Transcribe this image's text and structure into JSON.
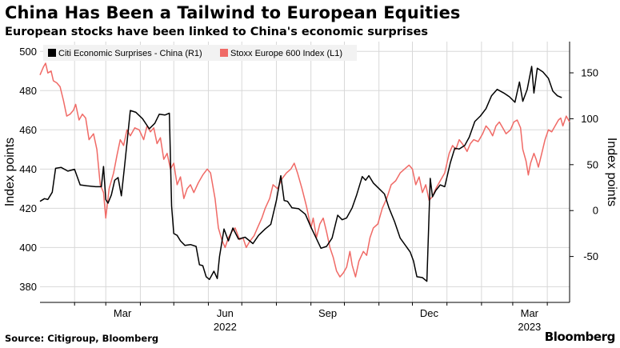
{
  "header": {
    "title": "China Has Been a Tailwind to European Equities",
    "subtitle": "European stocks have been linked to China's economic surprises"
  },
  "footer": {
    "source": "Source: Citigroup, Bloomberg",
    "brand": "Bloomberg"
  },
  "colors": {
    "citi_series": "#000000",
    "stoxx_series": "#f06a66",
    "grid": "#d8d8d8",
    "legend_bg": "#f2f2f2"
  },
  "chart_data": {
    "type": "line",
    "title": "China Has Been a Tailwind to European Equities",
    "subtitle": "European stocks have been linked to China's economic surprises",
    "grid": true,
    "legend_position": "top-left",
    "left_axis": {
      "label": "Index points",
      "ylim": [
        372,
        505
      ],
      "ticks": [
        380,
        400,
        420,
        440,
        460,
        480,
        500
      ]
    },
    "right_axis": {
      "label": "Index points",
      "ylim": [
        -100,
        184
      ],
      "ticks": [
        -50,
        0,
        50,
        100,
        150
      ]
    },
    "x_axis": {
      "range": [
        "2022-01-01",
        "2023-04-21"
      ],
      "month_ticks": [
        {
          "label": "Mar",
          "date": "2022-03-01"
        },
        {
          "label": "Jun",
          "date": "2022-06-01"
        },
        {
          "label": "Sep",
          "date": "2022-09-01"
        },
        {
          "label": "Dec",
          "date": "2022-12-01"
        },
        {
          "label": "Mar",
          "date": "2023-03-01"
        }
      ],
      "year_ticks": [
        {
          "label": "2022",
          "date": "2022-06-01"
        },
        {
          "label": "2023",
          "date": "2023-03-01"
        }
      ]
    },
    "series": [
      {
        "name": "Citi Economic Surprises - China (R1)",
        "axis": "right",
        "points": [
          [
            "2022-01-01",
            10
          ],
          [
            "2022-01-05",
            13
          ],
          [
            "2022-01-08",
            12
          ],
          [
            "2022-01-12",
            20
          ],
          [
            "2022-01-15",
            46
          ],
          [
            "2022-01-20",
            47
          ],
          [
            "2022-01-26",
            43
          ],
          [
            "2022-02-01",
            45
          ],
          [
            "2022-02-06",
            28
          ],
          [
            "2022-02-12",
            27
          ],
          [
            "2022-02-20",
            26
          ],
          [
            "2022-02-25",
            26
          ],
          [
            "2022-02-27",
            48
          ],
          [
            "2022-03-01",
            12
          ],
          [
            "2022-03-03",
            8
          ],
          [
            "2022-03-06",
            17
          ],
          [
            "2022-03-09",
            33
          ],
          [
            "2022-03-12",
            36
          ],
          [
            "2022-03-15",
            16
          ],
          [
            "2022-03-18",
            50
          ],
          [
            "2022-03-23",
            109
          ],
          [
            "2022-03-28",
            107
          ],
          [
            "2022-04-03",
            100
          ],
          [
            "2022-04-09",
            89
          ],
          [
            "2022-04-14",
            95
          ],
          [
            "2022-04-18",
            105
          ],
          [
            "2022-04-23",
            104
          ],
          [
            "2022-04-27",
            106
          ],
          [
            "2022-04-29",
            5
          ],
          [
            "2022-05-01",
            -25
          ],
          [
            "2022-05-04",
            -27
          ],
          [
            "2022-05-07",
            -33
          ],
          [
            "2022-05-11",
            -38
          ],
          [
            "2022-05-16",
            -37
          ],
          [
            "2022-05-21",
            -39
          ],
          [
            "2022-05-24",
            -59
          ],
          [
            "2022-05-27",
            -60
          ],
          [
            "2022-05-30",
            -72
          ],
          [
            "2022-06-02",
            -75
          ],
          [
            "2022-06-06",
            -66
          ],
          [
            "2022-06-09",
            -74
          ],
          [
            "2022-06-11",
            -50
          ],
          [
            "2022-06-15",
            -20
          ],
          [
            "2022-06-19",
            -33
          ],
          [
            "2022-06-23",
            -19
          ],
          [
            "2022-06-28",
            -31
          ],
          [
            "2022-07-04",
            -29
          ],
          [
            "2022-07-11",
            -36
          ],
          [
            "2022-07-16",
            -27
          ],
          [
            "2022-07-22",
            -20
          ],
          [
            "2022-07-27",
            -15
          ],
          [
            "2022-08-01",
            11
          ],
          [
            "2022-08-05",
            38
          ],
          [
            "2022-08-08",
            11
          ],
          [
            "2022-08-11",
            10
          ],
          [
            "2022-08-15",
            3
          ],
          [
            "2022-08-21",
            2
          ],
          [
            "2022-08-27",
            -4
          ],
          [
            "2022-09-01",
            -18
          ],
          [
            "2022-09-05",
            -28
          ],
          [
            "2022-09-10",
            -41
          ],
          [
            "2022-09-15",
            -39
          ],
          [
            "2022-09-20",
            -30
          ],
          [
            "2022-09-25",
            -5
          ],
          [
            "2022-09-29",
            -10
          ],
          [
            "2022-10-03",
            -8
          ],
          [
            "2022-10-08",
            3
          ],
          [
            "2022-10-12",
            17
          ],
          [
            "2022-10-17",
            37
          ],
          [
            "2022-10-20",
            33
          ],
          [
            "2022-10-23",
            38
          ],
          [
            "2022-10-27",
            30
          ],
          [
            "2022-11-01",
            24
          ],
          [
            "2022-11-06",
            18
          ],
          [
            "2022-11-10",
            3
          ],
          [
            "2022-11-15",
            -12
          ],
          [
            "2022-11-20",
            -30
          ],
          [
            "2022-11-26",
            -40
          ],
          [
            "2022-11-29",
            -45
          ],
          [
            "2022-12-02",
            -55
          ],
          [
            "2022-12-05",
            -72
          ],
          [
            "2022-12-10",
            -73
          ],
          [
            "2022-12-14",
            -77
          ],
          [
            "2022-12-17",
            35
          ],
          [
            "2022-12-19",
            15
          ],
          [
            "2022-12-22",
            22
          ],
          [
            "2022-12-26",
            28
          ],
          [
            "2022-12-30",
            26
          ],
          [
            "2023-01-04",
            52
          ],
          [
            "2023-01-08",
            68
          ],
          [
            "2023-01-12",
            67
          ],
          [
            "2023-01-17",
            71
          ],
          [
            "2023-01-21",
            80
          ],
          [
            "2023-01-26",
            97
          ],
          [
            "2023-01-31",
            103
          ],
          [
            "2023-02-05",
            111
          ],
          [
            "2023-02-10",
            125
          ],
          [
            "2023-02-15",
            132
          ],
          [
            "2023-02-21",
            128
          ],
          [
            "2023-02-26",
            124
          ],
          [
            "2023-03-03",
            118
          ],
          [
            "2023-03-07",
            140
          ],
          [
            "2023-03-10",
            119
          ],
          [
            "2023-03-14",
            132
          ],
          [
            "2023-03-18",
            157
          ],
          [
            "2023-03-20",
            128
          ],
          [
            "2023-03-23",
            155
          ],
          [
            "2023-03-28",
            151
          ],
          [
            "2023-04-02",
            144
          ],
          [
            "2023-04-06",
            130
          ],
          [
            "2023-04-10",
            125
          ],
          [
            "2023-04-14",
            123
          ]
        ]
      },
      {
        "name": "Stoxx Europe 600 Index (L1)",
        "axis": "left",
        "points": [
          [
            "2022-01-01",
            488
          ],
          [
            "2022-01-04",
            492
          ],
          [
            "2022-01-06",
            494
          ],
          [
            "2022-01-08",
            489
          ],
          [
            "2022-01-11",
            490
          ],
          [
            "2022-01-13",
            485
          ],
          [
            "2022-01-16",
            484
          ],
          [
            "2022-01-19",
            482
          ],
          [
            "2022-01-22",
            475
          ],
          [
            "2022-01-25",
            467
          ],
          [
            "2022-01-28",
            468
          ],
          [
            "2022-01-31",
            470
          ],
          [
            "2022-02-02",
            473
          ],
          [
            "2022-02-05",
            465
          ],
          [
            "2022-02-08",
            468
          ],
          [
            "2022-02-11",
            466
          ],
          [
            "2022-02-14",
            455
          ],
          [
            "2022-02-18",
            458
          ],
          [
            "2022-02-21",
            450
          ],
          [
            "2022-02-24",
            432
          ],
          [
            "2022-02-27",
            428
          ],
          [
            "2022-03-01",
            415
          ],
          [
            "2022-03-04",
            430
          ],
          [
            "2022-03-08",
            438
          ],
          [
            "2022-03-11",
            447
          ],
          [
            "2022-03-14",
            455
          ],
          [
            "2022-03-17",
            452
          ],
          [
            "2022-03-20",
            460
          ],
          [
            "2022-03-23",
            457
          ],
          [
            "2022-03-27",
            461
          ],
          [
            "2022-03-31",
            460
          ],
          [
            "2022-04-04",
            455
          ],
          [
            "2022-04-07",
            462
          ],
          [
            "2022-04-10",
            459
          ],
          [
            "2022-04-13",
            461
          ],
          [
            "2022-04-16",
            453
          ],
          [
            "2022-04-19",
            456
          ],
          [
            "2022-04-22",
            445
          ],
          [
            "2022-04-25",
            448
          ],
          [
            "2022-04-28",
            440
          ],
          [
            "2022-05-01",
            443
          ],
          [
            "2022-05-04",
            432
          ],
          [
            "2022-05-07",
            436
          ],
          [
            "2022-05-10",
            425
          ],
          [
            "2022-05-13",
            430
          ],
          [
            "2022-05-16",
            432
          ],
          [
            "2022-05-19",
            428
          ],
          [
            "2022-05-23",
            433
          ],
          [
            "2022-05-27",
            437
          ],
          [
            "2022-05-31",
            440
          ],
          [
            "2022-06-03",
            438
          ],
          [
            "2022-06-07",
            425
          ],
          [
            "2022-06-10",
            410
          ],
          [
            "2022-06-13",
            404
          ],
          [
            "2022-06-16",
            400
          ],
          [
            "2022-06-19",
            405
          ],
          [
            "2022-06-22",
            408
          ],
          [
            "2022-06-25",
            410
          ],
          [
            "2022-06-29",
            404
          ],
          [
            "2022-07-02",
            405
          ],
          [
            "2022-07-05",
            400
          ],
          [
            "2022-07-08",
            403
          ],
          [
            "2022-07-12",
            406
          ],
          [
            "2022-07-15",
            410
          ],
          [
            "2022-07-19",
            415
          ],
          [
            "2022-07-22",
            420
          ],
          [
            "2022-07-26",
            425
          ],
          [
            "2022-07-29",
            432
          ],
          [
            "2022-08-02",
            430
          ],
          [
            "2022-08-06",
            435
          ],
          [
            "2022-08-10",
            438
          ],
          [
            "2022-08-14",
            440
          ],
          [
            "2022-08-17",
            443
          ],
          [
            "2022-08-20",
            438
          ],
          [
            "2022-08-24",
            430
          ],
          [
            "2022-08-28",
            421
          ],
          [
            "2022-09-01",
            410
          ],
          [
            "2022-09-03",
            415
          ],
          [
            "2022-09-06",
            405
          ],
          [
            "2022-09-09",
            412
          ],
          [
            "2022-09-12",
            415
          ],
          [
            "2022-09-15",
            408
          ],
          [
            "2022-09-18",
            400
          ],
          [
            "2022-09-21",
            395
          ],
          [
            "2022-09-24",
            388
          ],
          [
            "2022-09-27",
            385
          ],
          [
            "2022-09-30",
            387
          ],
          [
            "2022-10-03",
            390
          ],
          [
            "2022-10-06",
            398
          ],
          [
            "2022-10-08",
            391
          ],
          [
            "2022-10-11",
            385
          ],
          [
            "2022-10-14",
            393
          ],
          [
            "2022-10-18",
            398
          ],
          [
            "2022-10-21",
            396
          ],
          [
            "2022-10-24",
            405
          ],
          [
            "2022-10-27",
            410
          ],
          [
            "2022-10-31",
            412
          ],
          [
            "2022-11-04",
            420
          ],
          [
            "2022-11-08",
            425
          ],
          [
            "2022-11-12",
            432
          ],
          [
            "2022-11-16",
            434
          ],
          [
            "2022-11-20",
            438
          ],
          [
            "2022-11-24",
            440
          ],
          [
            "2022-11-28",
            442
          ],
          [
            "2022-12-01",
            440
          ],
          [
            "2022-12-04",
            432
          ],
          [
            "2022-12-07",
            436
          ],
          [
            "2022-12-10",
            428
          ],
          [
            "2022-12-13",
            432
          ],
          [
            "2022-12-16",
            424
          ],
          [
            "2022-12-19",
            426
          ],
          [
            "2022-12-22",
            430
          ],
          [
            "2022-12-26",
            434
          ],
          [
            "2022-12-30",
            438
          ],
          [
            "2023-01-03",
            448
          ],
          [
            "2023-01-06",
            452
          ],
          [
            "2023-01-09",
            450
          ],
          [
            "2023-01-12",
            455
          ],
          [
            "2023-01-16",
            452
          ],
          [
            "2023-01-19",
            449
          ],
          [
            "2023-01-22",
            453
          ],
          [
            "2023-01-25",
            455
          ],
          [
            "2023-01-29",
            454
          ],
          [
            "2023-02-02",
            458
          ],
          [
            "2023-02-05",
            462
          ],
          [
            "2023-02-08",
            460
          ],
          [
            "2023-02-11",
            457
          ],
          [
            "2023-02-14",
            462
          ],
          [
            "2023-02-17",
            464
          ],
          [
            "2023-02-20",
            461
          ],
          [
            "2023-02-23",
            458
          ],
          [
            "2023-02-27",
            460
          ],
          [
            "2023-03-02",
            464
          ],
          [
            "2023-03-05",
            465
          ],
          [
            "2023-03-08",
            461
          ],
          [
            "2023-03-10",
            450
          ],
          [
            "2023-03-13",
            444
          ],
          [
            "2023-03-15",
            437
          ],
          [
            "2023-03-17",
            443
          ],
          [
            "2023-03-20",
            448
          ],
          [
            "2023-03-22",
            445
          ],
          [
            "2023-03-24",
            441
          ],
          [
            "2023-03-27",
            448
          ],
          [
            "2023-03-30",
            455
          ],
          [
            "2023-04-02",
            460
          ],
          [
            "2023-04-05",
            459
          ],
          [
            "2023-04-08",
            462
          ],
          [
            "2023-04-11",
            465
          ],
          [
            "2023-04-13",
            466
          ],
          [
            "2023-04-15",
            462
          ],
          [
            "2023-04-18",
            467
          ],
          [
            "2023-04-21",
            464
          ]
        ]
      }
    ]
  }
}
